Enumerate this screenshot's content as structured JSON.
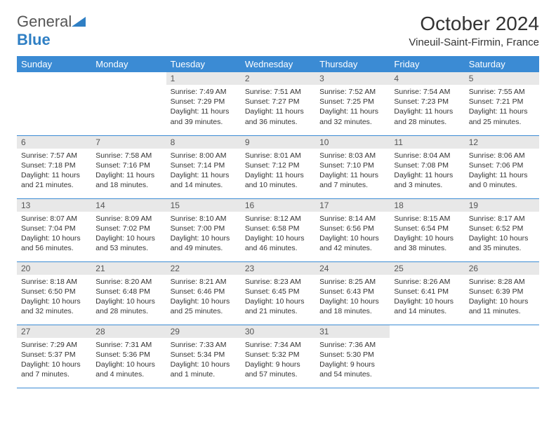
{
  "logo": {
    "text1": "General",
    "text2": "Blue"
  },
  "title": "October 2024",
  "location": "Vineuil-Saint-Firmin, France",
  "colors": {
    "header_bg": "#3b8bd4",
    "header_text": "#ffffff",
    "daynum_bg": "#e8e8e8",
    "border": "#3b8bd4",
    "logo_gray": "#555555",
    "logo_blue": "#2f7fc4"
  },
  "weekdays": [
    "Sunday",
    "Monday",
    "Tuesday",
    "Wednesday",
    "Thursday",
    "Friday",
    "Saturday"
  ],
  "weeks": [
    [
      null,
      null,
      {
        "n": "1",
        "sr": "7:49 AM",
        "ss": "7:29 PM",
        "dl": "11 hours and 39 minutes."
      },
      {
        "n": "2",
        "sr": "7:51 AM",
        "ss": "7:27 PM",
        "dl": "11 hours and 36 minutes."
      },
      {
        "n": "3",
        "sr": "7:52 AM",
        "ss": "7:25 PM",
        "dl": "11 hours and 32 minutes."
      },
      {
        "n": "4",
        "sr": "7:54 AM",
        "ss": "7:23 PM",
        "dl": "11 hours and 28 minutes."
      },
      {
        "n": "5",
        "sr": "7:55 AM",
        "ss": "7:21 PM",
        "dl": "11 hours and 25 minutes."
      }
    ],
    [
      {
        "n": "6",
        "sr": "7:57 AM",
        "ss": "7:18 PM",
        "dl": "11 hours and 21 minutes."
      },
      {
        "n": "7",
        "sr": "7:58 AM",
        "ss": "7:16 PM",
        "dl": "11 hours and 18 minutes."
      },
      {
        "n": "8",
        "sr": "8:00 AM",
        "ss": "7:14 PM",
        "dl": "11 hours and 14 minutes."
      },
      {
        "n": "9",
        "sr": "8:01 AM",
        "ss": "7:12 PM",
        "dl": "11 hours and 10 minutes."
      },
      {
        "n": "10",
        "sr": "8:03 AM",
        "ss": "7:10 PM",
        "dl": "11 hours and 7 minutes."
      },
      {
        "n": "11",
        "sr": "8:04 AM",
        "ss": "7:08 PM",
        "dl": "11 hours and 3 minutes."
      },
      {
        "n": "12",
        "sr": "8:06 AM",
        "ss": "7:06 PM",
        "dl": "11 hours and 0 minutes."
      }
    ],
    [
      {
        "n": "13",
        "sr": "8:07 AM",
        "ss": "7:04 PM",
        "dl": "10 hours and 56 minutes."
      },
      {
        "n": "14",
        "sr": "8:09 AM",
        "ss": "7:02 PM",
        "dl": "10 hours and 53 minutes."
      },
      {
        "n": "15",
        "sr": "8:10 AM",
        "ss": "7:00 PM",
        "dl": "10 hours and 49 minutes."
      },
      {
        "n": "16",
        "sr": "8:12 AM",
        "ss": "6:58 PM",
        "dl": "10 hours and 46 minutes."
      },
      {
        "n": "17",
        "sr": "8:14 AM",
        "ss": "6:56 PM",
        "dl": "10 hours and 42 minutes."
      },
      {
        "n": "18",
        "sr": "8:15 AM",
        "ss": "6:54 PM",
        "dl": "10 hours and 38 minutes."
      },
      {
        "n": "19",
        "sr": "8:17 AM",
        "ss": "6:52 PM",
        "dl": "10 hours and 35 minutes."
      }
    ],
    [
      {
        "n": "20",
        "sr": "8:18 AM",
        "ss": "6:50 PM",
        "dl": "10 hours and 32 minutes."
      },
      {
        "n": "21",
        "sr": "8:20 AM",
        "ss": "6:48 PM",
        "dl": "10 hours and 28 minutes."
      },
      {
        "n": "22",
        "sr": "8:21 AM",
        "ss": "6:46 PM",
        "dl": "10 hours and 25 minutes."
      },
      {
        "n": "23",
        "sr": "8:23 AM",
        "ss": "6:45 PM",
        "dl": "10 hours and 21 minutes."
      },
      {
        "n": "24",
        "sr": "8:25 AM",
        "ss": "6:43 PM",
        "dl": "10 hours and 18 minutes."
      },
      {
        "n": "25",
        "sr": "8:26 AM",
        "ss": "6:41 PM",
        "dl": "10 hours and 14 minutes."
      },
      {
        "n": "26",
        "sr": "8:28 AM",
        "ss": "6:39 PM",
        "dl": "10 hours and 11 minutes."
      }
    ],
    [
      {
        "n": "27",
        "sr": "7:29 AM",
        "ss": "5:37 PM",
        "dl": "10 hours and 7 minutes."
      },
      {
        "n": "28",
        "sr": "7:31 AM",
        "ss": "5:36 PM",
        "dl": "10 hours and 4 minutes."
      },
      {
        "n": "29",
        "sr": "7:33 AM",
        "ss": "5:34 PM",
        "dl": "10 hours and 1 minute."
      },
      {
        "n": "30",
        "sr": "7:34 AM",
        "ss": "5:32 PM",
        "dl": "9 hours and 57 minutes."
      },
      {
        "n": "31",
        "sr": "7:36 AM",
        "ss": "5:30 PM",
        "dl": "9 hours and 54 minutes."
      },
      null,
      null
    ]
  ],
  "labels": {
    "sunrise": "Sunrise:",
    "sunset": "Sunset:",
    "daylight": "Daylight:"
  }
}
